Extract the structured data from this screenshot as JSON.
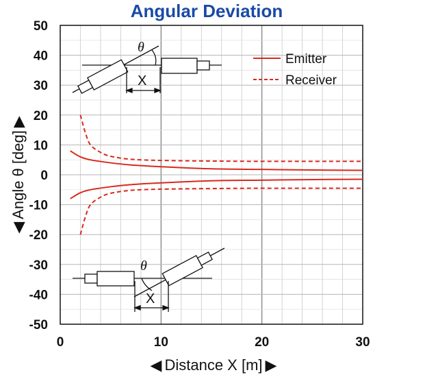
{
  "chart_data": {
    "type": "line",
    "title": "Angular Deviation",
    "xlabel": "Distance X [m]",
    "ylabel": "Angle θ [deg]",
    "xlim": [
      0,
      30
    ],
    "ylim": [
      -50,
      50
    ],
    "xticks": [
      "0",
      "10",
      "20",
      "30"
    ],
    "yticks": [
      "50",
      "40",
      "30",
      "20",
      "10",
      "0",
      "-10",
      "-20",
      "-30",
      "-40",
      "-50"
    ],
    "grid": true,
    "legend_position": "top-right",
    "colors": {
      "series": "#d9291c",
      "title": "#1a4aa6"
    },
    "series": [
      {
        "name": "Emitter",
        "style": "solid",
        "x": [
          1,
          2,
          3,
          5,
          7,
          10,
          15,
          20,
          25,
          30
        ],
        "y": [
          8,
          6,
          5,
          4,
          3.3,
          2.7,
          2,
          1.8,
          1.6,
          1.5
        ]
      },
      {
        "name": "Emitter",
        "style": "solid",
        "x": [
          1,
          2,
          3,
          5,
          7,
          10,
          15,
          20,
          25,
          30
        ],
        "y": [
          -8,
          -6,
          -5,
          -4,
          -3.3,
          -2.7,
          -2,
          -1.8,
          -1.6,
          -1.5
        ]
      },
      {
        "name": "Receiver",
        "style": "dashed",
        "x": [
          2,
          2.5,
          3,
          4,
          5,
          7,
          10,
          15,
          20,
          30
        ],
        "y": [
          20,
          14,
          10,
          7.5,
          6.2,
          5.2,
          4.8,
          4.6,
          4.5,
          4.5
        ]
      },
      {
        "name": "Receiver",
        "style": "dashed",
        "x": [
          2,
          2.5,
          3,
          4,
          5,
          7,
          10,
          15,
          20,
          30
        ],
        "y": [
          -20,
          -14,
          -10,
          -7.5,
          -6.2,
          -5.2,
          -4.8,
          -4.6,
          -4.5,
          -4.5
        ]
      }
    ],
    "legend": [
      {
        "label": "Emitter",
        "style": "solid"
      },
      {
        "label": "Receiver",
        "style": "dashed"
      }
    ],
    "annotations": {
      "top_diagram": {
        "theta": "θ",
        "x_label": "X"
      },
      "bottom_diagram": {
        "theta": "θ",
        "x_label": "X"
      }
    },
    "axis_arrows": {
      "left": "◀",
      "right": "▶"
    }
  }
}
